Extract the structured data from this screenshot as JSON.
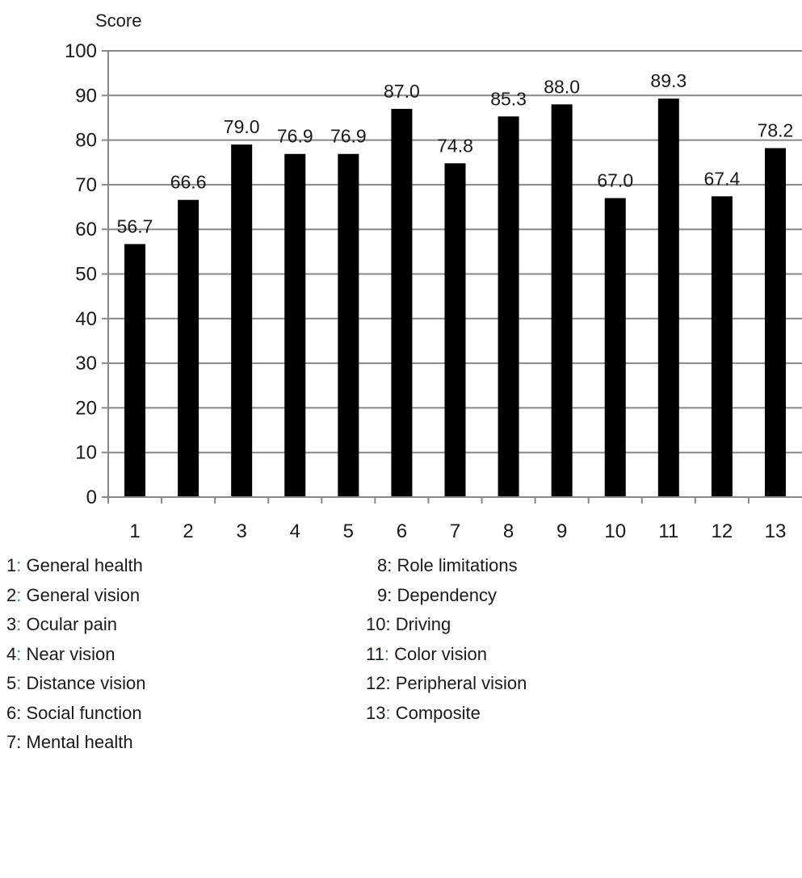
{
  "chart_data": {
    "type": "bar",
    "title": "",
    "ylabel": "Score",
    "xlabel": "",
    "categories": [
      "1",
      "2",
      "3",
      "4",
      "5",
      "6",
      "7",
      "8",
      "9",
      "10",
      "11",
      "12",
      "13"
    ],
    "values": [
      56.7,
      66.6,
      79.0,
      76.9,
      76.9,
      87.0,
      74.8,
      85.3,
      88.0,
      67.0,
      89.3,
      67.4,
      78.2
    ],
    "data_labels": [
      "56.7",
      "66.6",
      "79.0",
      "76.9",
      "76.9",
      "87.0",
      "74.8",
      "85.3",
      "88.0",
      "67.0",
      "89.3",
      "67.4",
      "78.2"
    ],
    "ylim": [
      0,
      100
    ],
    "yticks": [
      "0",
      "10",
      "20",
      "30",
      "40",
      "50",
      "60",
      "70",
      "80",
      "90",
      "100"
    ],
    "grid": "horizontal",
    "bar_color": "#000000",
    "grid_color": "#888888"
  },
  "legend": [
    {
      "num": "1",
      "sep": ":",
      "text": " General health"
    },
    {
      "num": "2",
      "sep": ":",
      "text": " General vision"
    },
    {
      "num": "3",
      "sep": ":",
      "text": " Ocular pain"
    },
    {
      "num": "4",
      "sep": ":",
      "text": " Near vision"
    },
    {
      "num": "5",
      "sep": ":",
      "text": " Distance vision"
    },
    {
      "num": "6",
      "sep": ":",
      "text": " Social function"
    },
    {
      "num": "7",
      "sep": ":",
      "text": " Mental health"
    },
    {
      "num": "8",
      "sep": ":",
      "text": " Role limitations"
    },
    {
      "num": "9",
      "sep": ":",
      "text": " Dependency"
    },
    {
      "num": "10",
      "sep": ":",
      "text": " Driving"
    },
    {
      "num": "11",
      "sep": ":",
      "text": " Color vision"
    },
    {
      "num": "12",
      "sep": ":",
      "text": " Peripheral vision"
    },
    {
      "num": "13",
      "sep": ":",
      "text": " Composite"
    }
  ],
  "colors": {
    "separator_accent": "#3a7ca8"
  }
}
